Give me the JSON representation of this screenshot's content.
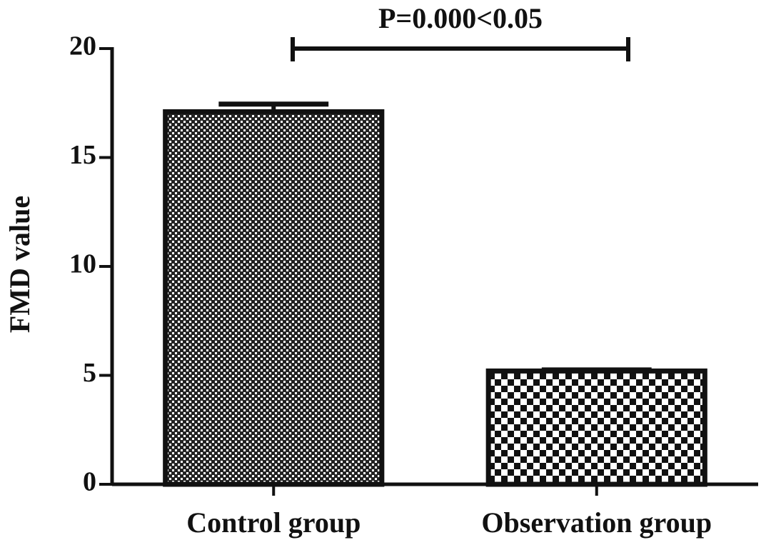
{
  "chart_data": {
    "type": "bar",
    "y_label": "FMD value",
    "annotation": "P=0.000<0.05",
    "categories": [
      "Control group",
      "Observation group"
    ],
    "values": [
      17.1,
      5.2
    ],
    "errors": [
      0.35,
      0.05
    ],
    "color": "#111111",
    "ylim": [
      0,
      20
    ],
    "yticks": [
      0,
      5,
      10,
      15,
      20
    ]
  }
}
